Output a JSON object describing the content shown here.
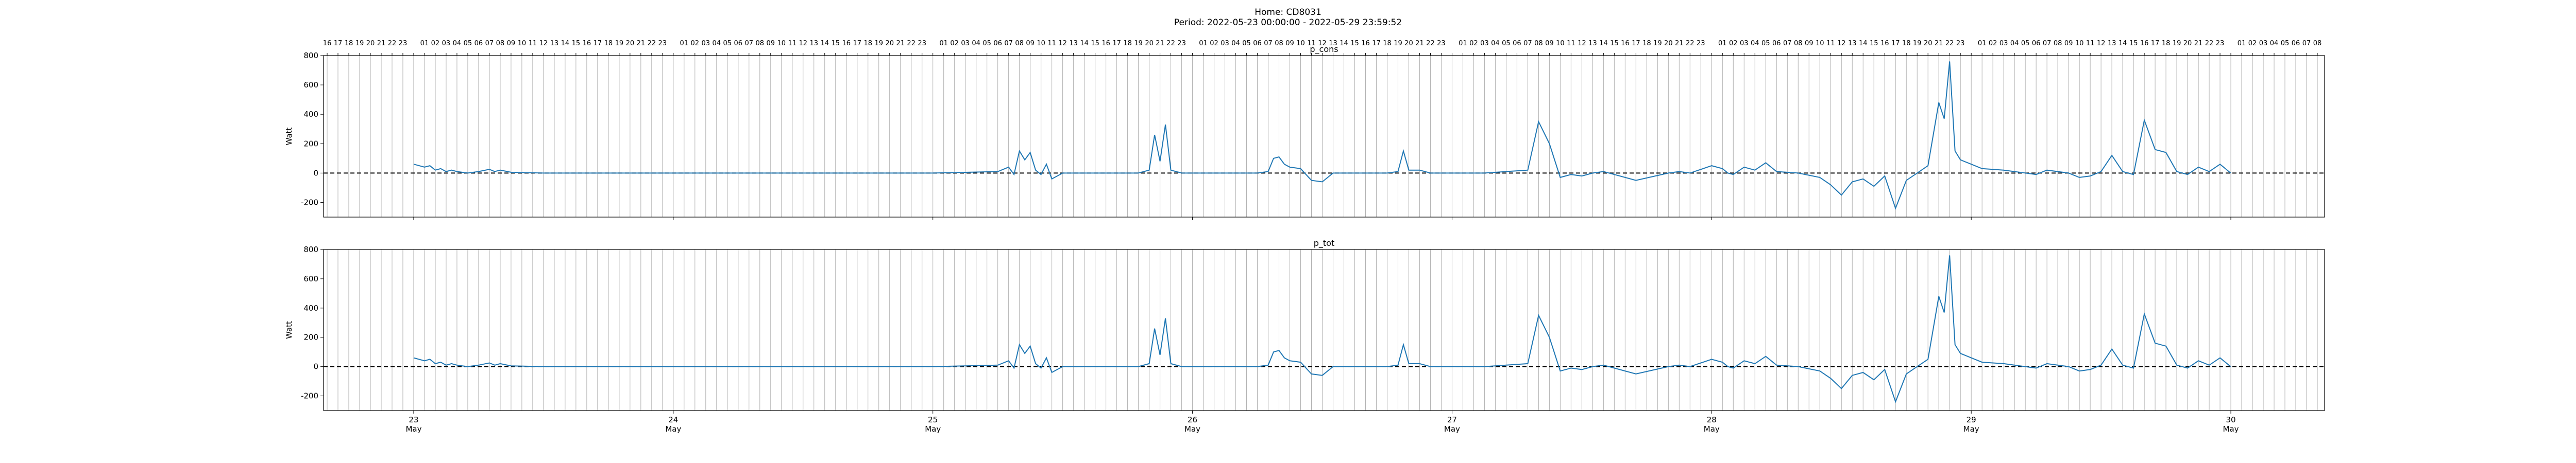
{
  "figure": {
    "home_label": "Home: CD8031",
    "period_label": "Period: 2022-05-23 00:00:00 - 2022-05-29 23:59:52"
  },
  "colors": {
    "line": "#1f77b4",
    "grid": "#b0b0b0",
    "axis": "#000000"
  },
  "chart_data": [
    {
      "type": "line",
      "title": "p_cons",
      "ylabel": "Watt",
      "ylim": [
        -300,
        800
      ],
      "yticks": [
        -200,
        0,
        200,
        400,
        600,
        800
      ],
      "xlim": [
        "2022-05-22T15:40",
        "2022-05-30T08:40"
      ],
      "hour_ticks_top": [
        "16",
        "17",
        "18",
        "19",
        "20",
        "21",
        "22",
        "23",
        "",
        "01",
        "02",
        "03",
        "04",
        "05",
        "06",
        "07",
        "08",
        "09",
        "10",
        "11",
        "12",
        "13",
        "14",
        "15",
        "16",
        "17",
        "18",
        "19",
        "20",
        "21",
        "22",
        "23",
        "",
        "01",
        "02",
        "03",
        "04",
        "05",
        "06",
        "07",
        "08",
        "09",
        "10",
        "11",
        "12",
        "13",
        "14",
        "15",
        "16",
        "17",
        "18",
        "19",
        "20",
        "21",
        "22",
        "23",
        "",
        "01",
        "02",
        "03",
        "04",
        "05",
        "06",
        "07",
        "08",
        "09",
        "10",
        "11",
        "12",
        "13",
        "14",
        "15",
        "16",
        "17",
        "18",
        "19",
        "20",
        "21",
        "22",
        "23",
        "",
        "01",
        "02",
        "03",
        "04",
        "05",
        "06",
        "07",
        "08",
        "09",
        "10",
        "11",
        "12",
        "13",
        "14",
        "15",
        "16",
        "17",
        "18",
        "19",
        "20",
        "21",
        "22",
        "23",
        "",
        "01",
        "02",
        "03",
        "04",
        "05",
        "06",
        "07",
        "08",
        "09",
        "10",
        "11",
        "12",
        "13",
        "14",
        "15",
        "16",
        "17",
        "18",
        "19",
        "20",
        "21",
        "22",
        "23",
        "",
        "01",
        "02",
        "03",
        "04",
        "05",
        "06",
        "07",
        "08",
        "09",
        "10",
        "11",
        "12",
        "13",
        "14",
        "15",
        "16",
        "17",
        "18",
        "19",
        "20",
        "21",
        "22",
        "23",
        "",
        "01",
        "02",
        "03",
        "04",
        "05",
        "06",
        "07",
        "08",
        "09",
        "10",
        "11",
        "12",
        "13",
        "14",
        "15",
        "16",
        "17",
        "18",
        "19",
        "20",
        "21",
        "22",
        "23",
        "",
        "01",
        "02",
        "03",
        "04",
        "05",
        "06",
        "07",
        "08"
      ],
      "day_ticks": [
        {
          "x": "2022-05-23T00:00",
          "label": "23",
          "month": "May"
        },
        {
          "x": "2022-05-24T00:00",
          "label": "24",
          "month": "May"
        },
        {
          "x": "2022-05-25T00:00",
          "label": "25",
          "month": "May"
        },
        {
          "x": "2022-05-26T00:00",
          "label": "26",
          "month": "May"
        },
        {
          "x": "2022-05-27T00:00",
          "label": "27",
          "month": "May"
        },
        {
          "x": "2022-05-28T00:00",
          "label": "28",
          "month": "May"
        },
        {
          "x": "2022-05-29T00:00",
          "label": "29",
          "month": "May"
        },
        {
          "x": "2022-05-30T00:00",
          "label": "30",
          "month": "May"
        }
      ],
      "reference_line": 0,
      "series": [
        {
          "x": [
            "2022-05-23T00:00",
            "2022-05-23T01:00",
            "2022-05-23T01:30",
            "2022-05-23T02:00",
            "2022-05-23T02:30",
            "2022-05-23T03:00",
            "2022-05-23T03:30",
            "2022-05-23T04:00",
            "2022-05-23T05:00",
            "2022-05-23T06:00",
            "2022-05-23T07:00",
            "2022-05-23T07:30",
            "2022-05-23T08:00",
            "2022-05-23T09:00",
            "2022-05-23T12:00",
            "2022-05-24T00:00",
            "2022-05-25T00:00",
            "2022-05-25T06:00",
            "2022-05-25T07:00",
            "2022-05-25T07:30",
            "2022-05-25T08:00",
            "2022-05-25T08:30",
            "2022-05-25T09:00",
            "2022-05-25T09:30",
            "2022-05-25T10:00",
            "2022-05-25T10:30",
            "2022-05-25T11:00",
            "2022-05-25T11:30",
            "2022-05-25T12:00",
            "2022-05-25T13:00",
            "2022-05-25T16:00",
            "2022-05-25T19:00",
            "2022-05-25T20:00",
            "2022-05-25T20:30",
            "2022-05-25T21:00",
            "2022-05-25T21:30",
            "2022-05-25T22:00",
            "2022-05-25T23:00",
            "2022-05-26T06:00",
            "2022-05-26T07:00",
            "2022-05-26T07:30",
            "2022-05-26T08:00",
            "2022-05-26T08:30",
            "2022-05-26T09:00",
            "2022-05-26T10:00",
            "2022-05-26T11:00",
            "2022-05-26T12:00",
            "2022-05-26T13:00",
            "2022-05-26T14:00",
            "2022-05-26T16:00",
            "2022-05-26T18:00",
            "2022-05-26T19:00",
            "2022-05-26T19:30",
            "2022-05-26T20:00",
            "2022-05-26T21:00",
            "2022-05-26T22:00",
            "2022-05-27T00:00",
            "2022-05-27T03:00",
            "2022-05-27T05:00",
            "2022-05-27T07:00",
            "2022-05-27T08:00",
            "2022-05-27T09:00",
            "2022-05-27T10:00",
            "2022-05-27T11:00",
            "2022-05-27T12:00",
            "2022-05-27T13:00",
            "2022-05-27T14:00",
            "2022-05-27T15:00",
            "2022-05-27T17:00",
            "2022-05-27T20:00",
            "2022-05-27T21:00",
            "2022-05-27T22:00",
            "2022-05-28T00:00",
            "2022-05-28T01:00",
            "2022-05-28T01:30",
            "2022-05-28T02:00",
            "2022-05-28T03:00",
            "2022-05-28T04:00",
            "2022-05-28T05:00",
            "2022-05-28T06:00",
            "2022-05-28T08:00",
            "2022-05-28T10:00",
            "2022-05-28T11:00",
            "2022-05-28T12:00",
            "2022-05-28T13:00",
            "2022-05-28T14:00",
            "2022-05-28T15:00",
            "2022-05-28T16:00",
            "2022-05-28T17:00",
            "2022-05-28T18:00",
            "2022-05-28T19:00",
            "2022-05-28T20:00",
            "2022-05-28T21:00",
            "2022-05-28T21:30",
            "2022-05-28T22:00",
            "2022-05-28T22:30",
            "2022-05-28T23:00",
            "2022-05-29T00:00",
            "2022-05-29T01:00",
            "2022-05-29T03:00",
            "2022-05-29T06:00",
            "2022-05-29T07:00",
            "2022-05-29T09:00",
            "2022-05-29T10:00",
            "2022-05-29T11:00",
            "2022-05-29T12:00",
            "2022-05-29T13:00",
            "2022-05-29T14:00",
            "2022-05-29T15:00",
            "2022-05-29T16:00",
            "2022-05-29T17:00",
            "2022-05-29T18:00",
            "2022-05-29T19:00",
            "2022-05-29T20:00",
            "2022-05-29T21:00",
            "2022-05-29T22:00",
            "2022-05-29T23:00",
            "2022-05-29T23:59"
          ],
          "y": [
            60,
            40,
            50,
            20,
            30,
            10,
            20,
            10,
            0,
            10,
            25,
            10,
            20,
            5,
            0,
            0,
            0,
            10,
            40,
            -10,
            150,
            90,
            140,
            20,
            -10,
            60,
            -40,
            -20,
            0,
            0,
            0,
            0,
            20,
            260,
            80,
            330,
            20,
            0,
            0,
            10,
            100,
            110,
            60,
            40,
            30,
            -50,
            -60,
            0,
            0,
            0,
            0,
            10,
            150,
            20,
            20,
            0,
            0,
            0,
            10,
            20,
            350,
            200,
            -30,
            -10,
            -20,
            0,
            10,
            -10,
            -50,
            0,
            10,
            0,
            50,
            30,
            0,
            -10,
            40,
            20,
            70,
            10,
            0,
            -30,
            -80,
            -150,
            -60,
            -40,
            -90,
            -20,
            -240,
            -50,
            0,
            50,
            480,
            370,
            760,
            150,
            90,
            60,
            30,
            20,
            -10,
            20,
            0,
            -30,
            -20,
            10,
            120,
            10,
            -10,
            360,
            160,
            140,
            10,
            -10,
            40,
            10,
            60,
            0
          ]
        }
      ]
    },
    {
      "type": "line",
      "title": "p_tot",
      "ylabel": "Watt",
      "ylim": [
        -300,
        800
      ],
      "yticks": [
        -200,
        0,
        200,
        400,
        600,
        800
      ],
      "xlim": [
        "2022-05-22T15:40",
        "2022-05-30T08:40"
      ],
      "reference_line": 0,
      "series": [
        {
          "x": [
            "2022-05-23T00:00",
            "2022-05-23T01:00",
            "2022-05-23T01:30",
            "2022-05-23T02:00",
            "2022-05-23T02:30",
            "2022-05-23T03:00",
            "2022-05-23T03:30",
            "2022-05-23T04:00",
            "2022-05-23T05:00",
            "2022-05-23T06:00",
            "2022-05-23T07:00",
            "2022-05-23T07:30",
            "2022-05-23T08:00",
            "2022-05-23T09:00",
            "2022-05-23T12:00",
            "2022-05-24T00:00",
            "2022-05-25T00:00",
            "2022-05-25T06:00",
            "2022-05-25T07:00",
            "2022-05-25T07:30",
            "2022-05-25T08:00",
            "2022-05-25T08:30",
            "2022-05-25T09:00",
            "2022-05-25T09:30",
            "2022-05-25T10:00",
            "2022-05-25T10:30",
            "2022-05-25T11:00",
            "2022-05-25T11:30",
            "2022-05-25T12:00",
            "2022-05-25T13:00",
            "2022-05-25T16:00",
            "2022-05-25T19:00",
            "2022-05-25T20:00",
            "2022-05-25T20:30",
            "2022-05-25T21:00",
            "2022-05-25T21:30",
            "2022-05-25T22:00",
            "2022-05-25T23:00",
            "2022-05-26T06:00",
            "2022-05-26T07:00",
            "2022-05-26T07:30",
            "2022-05-26T08:00",
            "2022-05-26T08:30",
            "2022-05-26T09:00",
            "2022-05-26T10:00",
            "2022-05-26T11:00",
            "2022-05-26T12:00",
            "2022-05-26T13:00",
            "2022-05-26T14:00",
            "2022-05-26T16:00",
            "2022-05-26T18:00",
            "2022-05-26T19:00",
            "2022-05-26T19:30",
            "2022-05-26T20:00",
            "2022-05-26T21:00",
            "2022-05-26T22:00",
            "2022-05-27T00:00",
            "2022-05-27T03:00",
            "2022-05-27T05:00",
            "2022-05-27T07:00",
            "2022-05-27T08:00",
            "2022-05-27T09:00",
            "2022-05-27T10:00",
            "2022-05-27T11:00",
            "2022-05-27T12:00",
            "2022-05-27T13:00",
            "2022-05-27T14:00",
            "2022-05-27T15:00",
            "2022-05-27T17:00",
            "2022-05-27T20:00",
            "2022-05-27T21:00",
            "2022-05-27T22:00",
            "2022-05-28T00:00",
            "2022-05-28T01:00",
            "2022-05-28T01:30",
            "2022-05-28T02:00",
            "2022-05-28T03:00",
            "2022-05-28T04:00",
            "2022-05-28T05:00",
            "2022-05-28T06:00",
            "2022-05-28T08:00",
            "2022-05-28T10:00",
            "2022-05-28T11:00",
            "2022-05-28T12:00",
            "2022-05-28T13:00",
            "2022-05-28T14:00",
            "2022-05-28T15:00",
            "2022-05-28T16:00",
            "2022-05-28T17:00",
            "2022-05-28T18:00",
            "2022-05-28T19:00",
            "2022-05-28T20:00",
            "2022-05-28T21:00",
            "2022-05-28T21:30",
            "2022-05-28T22:00",
            "2022-05-28T22:30",
            "2022-05-28T23:00",
            "2022-05-29T00:00",
            "2022-05-29T01:00",
            "2022-05-29T03:00",
            "2022-05-29T06:00",
            "2022-05-29T07:00",
            "2022-05-29T09:00",
            "2022-05-29T10:00",
            "2022-05-29T11:00",
            "2022-05-29T12:00",
            "2022-05-29T13:00",
            "2022-05-29T14:00",
            "2022-05-29T15:00",
            "2022-05-29T16:00",
            "2022-05-29T17:00",
            "2022-05-29T18:00",
            "2022-05-29T19:00",
            "2022-05-29T20:00",
            "2022-05-29T21:00",
            "2022-05-29T22:00",
            "2022-05-29T23:00",
            "2022-05-29T23:59"
          ],
          "y": [
            60,
            40,
            50,
            20,
            30,
            10,
            20,
            10,
            0,
            10,
            25,
            10,
            20,
            5,
            0,
            0,
            0,
            10,
            40,
            -10,
            150,
            90,
            140,
            20,
            -10,
            60,
            -40,
            -20,
            0,
            0,
            0,
            0,
            20,
            260,
            80,
            330,
            20,
            0,
            0,
            10,
            100,
            110,
            60,
            40,
            30,
            -50,
            -60,
            0,
            0,
            0,
            0,
            10,
            150,
            20,
            20,
            0,
            0,
            0,
            10,
            20,
            350,
            200,
            -30,
            -10,
            -20,
            0,
            10,
            -10,
            -50,
            0,
            10,
            0,
            50,
            30,
            0,
            -10,
            40,
            20,
            70,
            10,
            0,
            -30,
            -80,
            -150,
            -60,
            -40,
            -90,
            -20,
            -240,
            -50,
            0,
            50,
            480,
            370,
            760,
            150,
            90,
            60,
            30,
            20,
            -10,
            20,
            0,
            -30,
            -20,
            10,
            120,
            10,
            -10,
            360,
            160,
            140,
            10,
            -10,
            40,
            10,
            60,
            0
          ]
        }
      ]
    }
  ]
}
